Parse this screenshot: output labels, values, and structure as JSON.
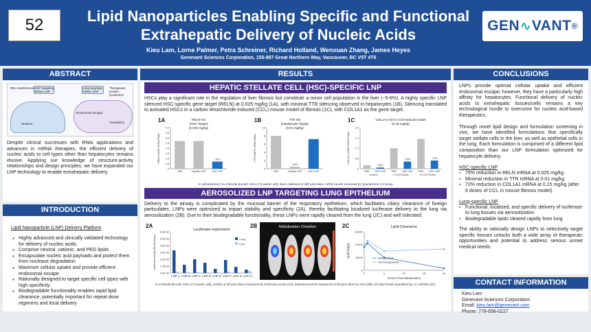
{
  "header": {
    "poster_number": "52",
    "title_line1": "Lipid Nanoparticles Enabling Specific and Functional",
    "title_line2": "Extrahepatic Delivery of Nucleic Acids",
    "authors": "Kieu Lam, Lorne Palmer, Petra Schreiner, Richard Holland, Wenxuan Zhang, James Heyes",
    "affiliation": "Genevant Sciences Corporation, 155-887 Great Northern Way, Vancouver, BC V5T 4T5",
    "logo_left": "GEN",
    "logo_right": "VANT",
    "logo_mark": "®"
  },
  "abstract": {
    "heading": "ABSTRACT",
    "fig_labels": [
      "RNA interference",
      "HSC targeting siRNA-LNP",
      "Lung targeting mRNA-LNP",
      "Therapeutic protein production",
      "Endosomal escape",
      "Translation",
      "Nucleus"
    ],
    "text": "Despite clinical successes with RNAi applications and advances in mRNA therapies, the efficient delivery of nucleic acids to cell types other than hepatocytes remains elusive. Applying our knowledge of structure-activity relationships and design principles, we have expanded our LNP technology to enable extrahepatic delivery."
  },
  "introduction": {
    "heading": "INTRODUCTION",
    "subheading": "Lipid Nanoparticle (LNP) Delivery Platform",
    "items": [
      "Highly advanced and clinically validated technology for delivery of nucleic acids",
      "Comprise neutral, cationic, and PEG lipids",
      "Encapsulate nucleic acid payloads and protect them from nuclease degradation",
      "Maximize cellular uptake and provide efficient endosomal escape",
      "Rationally designed to target specific cell types with high specificity",
      "Biodegradable functionality enables rapid lipid clearance, potentially important for repeat dose regimens and local delivery"
    ]
  },
  "results": {
    "heading": "RESULTS",
    "hsc_heading": "HEPATIC STELLATE CELL (HSC)-SPECIFIC LNP",
    "hsc_text": "HSCs play a significant role in the regulation of liver fibrosis but constitute a minor cell population in the liver (~5-8%). A highly specific LNP silenced HSC-specific gene target (RELN) at 0.025 mg/kg (1A), with minimal TTR silencing observed in hepatocytes (1B). Silencing translated to activated HSCs in a carbon tetrachloride-induced (CCl₄) mouse model of fibrosis (1C), with COL1A1 as the gene target.",
    "hsc_note": "IV administered; N=4 female BALB/c mice (7-8 weeks old); livers collected at 48h post-dose; mRNA levels assessed by QuantiGene 2.0 assay",
    "lung_heading": "AEROSOLIZED LNP TARGETING LUNG EPITHELIUM",
    "lung_text": "Delivery to the airway is complicated by the mucosal barrier of the respiratory epithelium, which facilitates ciliary clearance of foreign particulates. LNPs were optimized to impart stability and specificity (2A), thereby facilitating localized luciferase delivery to the lung via aerosolization (2B). Due to their biodegradable functionality, these LNPs were rapidly cleared from the lung (2C) and well tolerated.",
    "lung_note": "N=3 female BALB/c mice (7-8 weeks old); activity at 6h post-dose measured by luciferase assay (2A); bioluminescence measured at 6h post-dose by IVIS (2B); and lipid levels quantified by LC-MS/MS (2C)."
  },
  "chart_data": [
    {
      "type": "bar",
      "panel": "1A",
      "title": "RELN KD (HSC Target) (0.025 mg/kg)",
      "ylabel": "RELN:GAPD mRNA Ratio",
      "categories": [
        "PBS",
        "Hepatic LNP",
        "HSC LNP"
      ],
      "values": [
        2.7,
        2.7,
        0.7
      ],
      "colors": [
        "#bfbfbf",
        "#bfbfbf",
        "#1e6fc4"
      ],
      "annotations": [
        "",
        "",
        "-76%"
      ],
      "ylim": [
        0,
        4
      ],
      "yticks": [
        "0",
        "0.5",
        "1.0",
        "1.5",
        "2.0",
        "2.5",
        "3.0",
        "3.5",
        "4.0"
      ]
    },
    {
      "type": "bar",
      "panel": "1B",
      "title": "TTR KD (Hepatocyte Target) (0.01 mg/kg)",
      "ylabel": "TTR:GAPD mRNA Ratio",
      "categories": [
        "PBS",
        "Hepatic LNP",
        "HSC LNP"
      ],
      "values": [
        8.0,
        0.5,
        7.2
      ],
      "colors": [
        "#bfbfbf",
        "#bfbfbf",
        "#1e6fc4"
      ],
      "annotations": [
        "",
        "-94%",
        ""
      ],
      "ylim": [
        0,
        10
      ],
      "yticks": [
        "0",
        "2",
        "4",
        "6",
        "8",
        "10"
      ]
    },
    {
      "type": "bar",
      "panel": "1C",
      "title": "COL1A1 KD in CCl4-induced model (0.15 mg/kg)",
      "ylabel": "COL1A1:GAPD mRNA Ratio",
      "categories": [
        "PBS",
        "HSC LNP",
        "PBS",
        "HSC LNP",
        "PBS",
        "HSC LNP"
      ],
      "groups": [
        "Control",
        "4 CCl4 Doses",
        "8 CCl4 Doses"
      ],
      "values": [
        0.17,
        0.06,
        1.0,
        0.35,
        1.45,
        0.4
      ],
      "colors": [
        "#bfbfbf",
        "#1e6fc4",
        "#bfbfbf",
        "#1e6fc4",
        "#bfbfbf",
        "#1e6fc4"
      ],
      "annotations": [
        "",
        "-66%",
        "",
        "-65%",
        "",
        "-72%"
      ],
      "ylim": [
        0,
        2.0
      ],
      "yticks": [
        "0",
        "0.5",
        "1.0",
        "1.5",
        "2.0"
      ]
    },
    {
      "type": "bar",
      "panel": "2A",
      "title": "Luciferase expression",
      "ylabel": "Luciferase Activity (RLU/g tissue)",
      "categories": [
        "LNP A",
        "LNP B",
        "LNP C",
        "LNP D",
        "LNP E",
        "LNP F",
        "LNP G",
        "LNP H"
      ],
      "series": [
        {
          "name": "Lung",
          "color": "#1f4e96",
          "values": [
            330000.0,
            120000.0,
            200000.0,
            150000.0,
            60000.0,
            190000.0,
            90000.0,
            50000.0
          ]
        },
        {
          "name": "Liver",
          "color": "#a9c4e8",
          "values": [
            20000.0,
            10000.0,
            15000.0,
            10000.0,
            10000.0,
            20000.0,
            10000.0,
            30000.0
          ]
        }
      ],
      "ylim": [
        0,
        600000
      ],
      "yticks": [
        "0.0E+00",
        "1.0E+05",
        "2.0E+05",
        "3.0E+05",
        "4.0E+05",
        "5.0E+05",
        "6.0E+05"
      ]
    },
    {
      "type": "line",
      "panel": "2C",
      "title": "Lipid Clearance",
      "xlabel": "Hours Post-Nebulization",
      "ylabel": "Lipid (ng/g)",
      "x": [
        0,
        1,
        6,
        24
      ],
      "xticks": [
        "0",
        "6",
        "12",
        "18",
        "24"
      ],
      "series": [
        {
          "name": "Biodegradable",
          "color": "#1e6fc4",
          "values": [
            18000,
            21000,
            10000,
            1500
          ]
        },
        {
          "name": "Non-biodegradable",
          "color": "#7fb1e6",
          "values": [
            19000,
            23000,
            15000,
            16500
          ]
        }
      ],
      "ylim": [
        0,
        30000
      ],
      "yticks": [
        "0",
        "10000",
        "20000",
        "30000"
      ]
    }
  ],
  "nebulization": {
    "panel": "2B",
    "title": "Nebulization Chamber"
  },
  "conclusions": {
    "heading": "CONCLUSIONS",
    "p1": "LNPs provide optimal cellular uptake and efficient endosomal escape; however, they have a particularly high affinity for hepatocytes. Functional delivery of nucleic acids to extrahepatic tissues/cells remains a key technological hurdle to overcome for nucleic acid-based therapeutics.",
    "p2": "Through novel lipid design and formulation screening in vivo, we have identified formulations that specifically target stellate cells in the liver, as well as epithelial cells in the lung. Each formulation is comprised of a different lipid composition than our LNP formulation optimized for hepatocyte delivery.",
    "hsc_title": "HSC-specific LNP",
    "hsc_items": [
      "76% reduction in RELN mRNA at 0.025 mg/kg",
      "Minimal reduction in TTR mRNA at 0.01 mg/kg",
      "72% reduction in COL1A1 mRNA at 0.15 mg/kg (after 8 doses of CCl₄ in mouse fibrosis model)"
    ],
    "lung_title": "Lung-specific LNP",
    "lung_items": [
      "Functional, localized, and specific delivery of luciferase to lung tissues via aerosolization",
      "Biodegradable lipids cleared rapidly from lung"
    ],
    "p3": "The ability to rationally design LNPs to selectively target specific tissues unlocks both a wide array of therapeutic opportunities and potential to address serious unmet medical needs."
  },
  "contact": {
    "heading": "CONTACT INFORMATION",
    "name": "Kieu Lam",
    "org": "Genevant Sciences Corporation",
    "email_label": "Email: ",
    "email": "kieu.lam@genevant.com",
    "phone": "Phone: 778-658-0227"
  }
}
